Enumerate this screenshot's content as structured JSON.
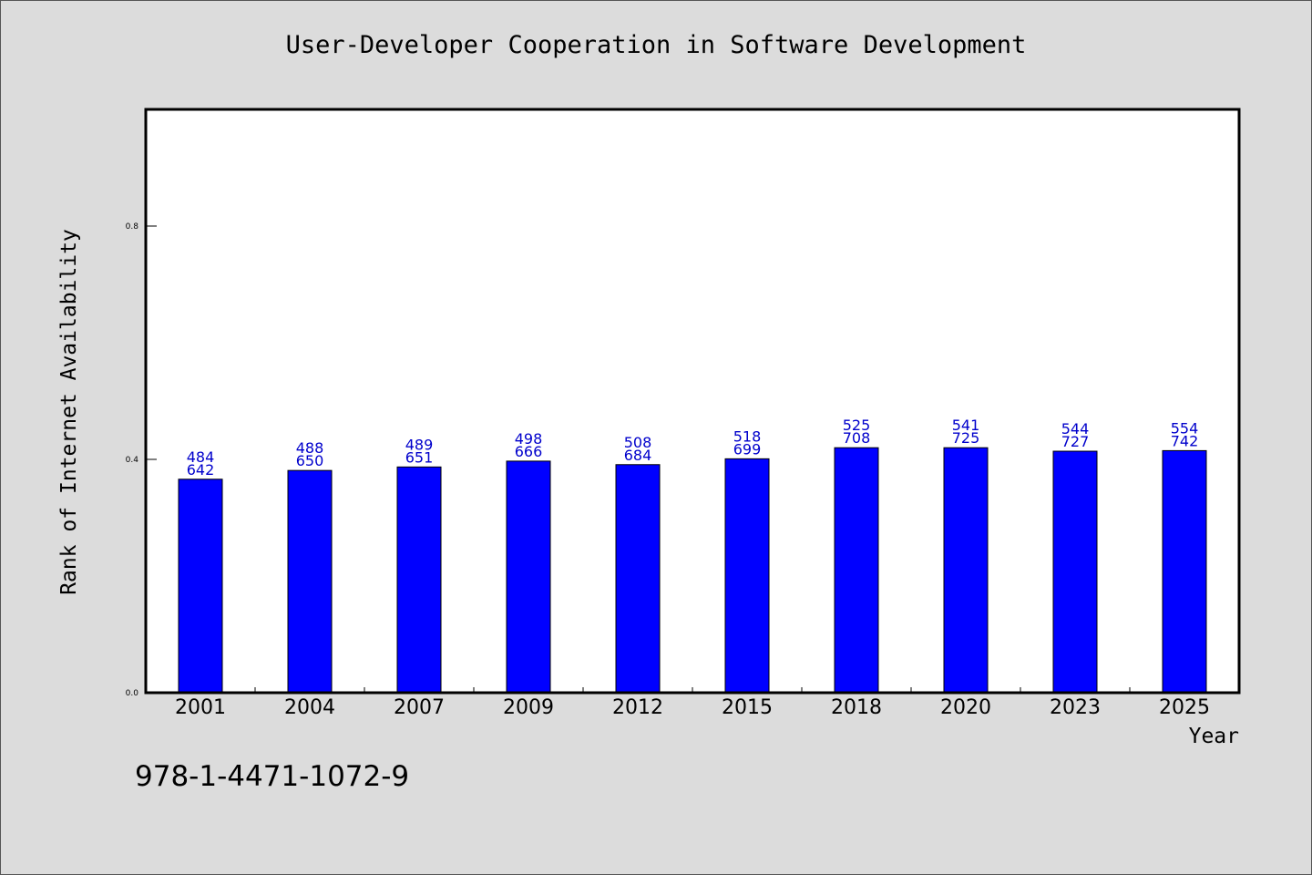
{
  "colors": {
    "background": "#dcdcdc",
    "plot_background": "#ffffff",
    "bar_fill": "#0000ff",
    "bar_stroke": "#000000",
    "label_color": "#0000cc"
  },
  "footer_text": "978-1-4471-1072-9",
  "chart_data": {
    "type": "bar",
    "title": "User-Developer Cooperation in Software Development",
    "xlabel": "Year",
    "ylabel": "Rank of Internet Availability",
    "ylim": [
      0,
      1.0
    ],
    "yticks": [
      0.0,
      0.4,
      0.8
    ],
    "ytick_labels": [
      "0.0",
      "0.4",
      "0.8"
    ],
    "grid": false,
    "categories": [
      "2001",
      "2004",
      "2007",
      "2009",
      "2012",
      "2015",
      "2018",
      "2020",
      "2023",
      "2025"
    ],
    "values": [
      0.366,
      0.381,
      0.387,
      0.397,
      0.391,
      0.401,
      0.42,
      0.42,
      0.414,
      0.415
    ],
    "labels_top": [
      "484",
      "488",
      "489",
      "498",
      "508",
      "518",
      "525",
      "541",
      "544",
      "554"
    ],
    "labels_bottom": [
      "642",
      "650",
      "651",
      "666",
      "684",
      "699",
      "708",
      "725",
      "727",
      "742"
    ]
  }
}
